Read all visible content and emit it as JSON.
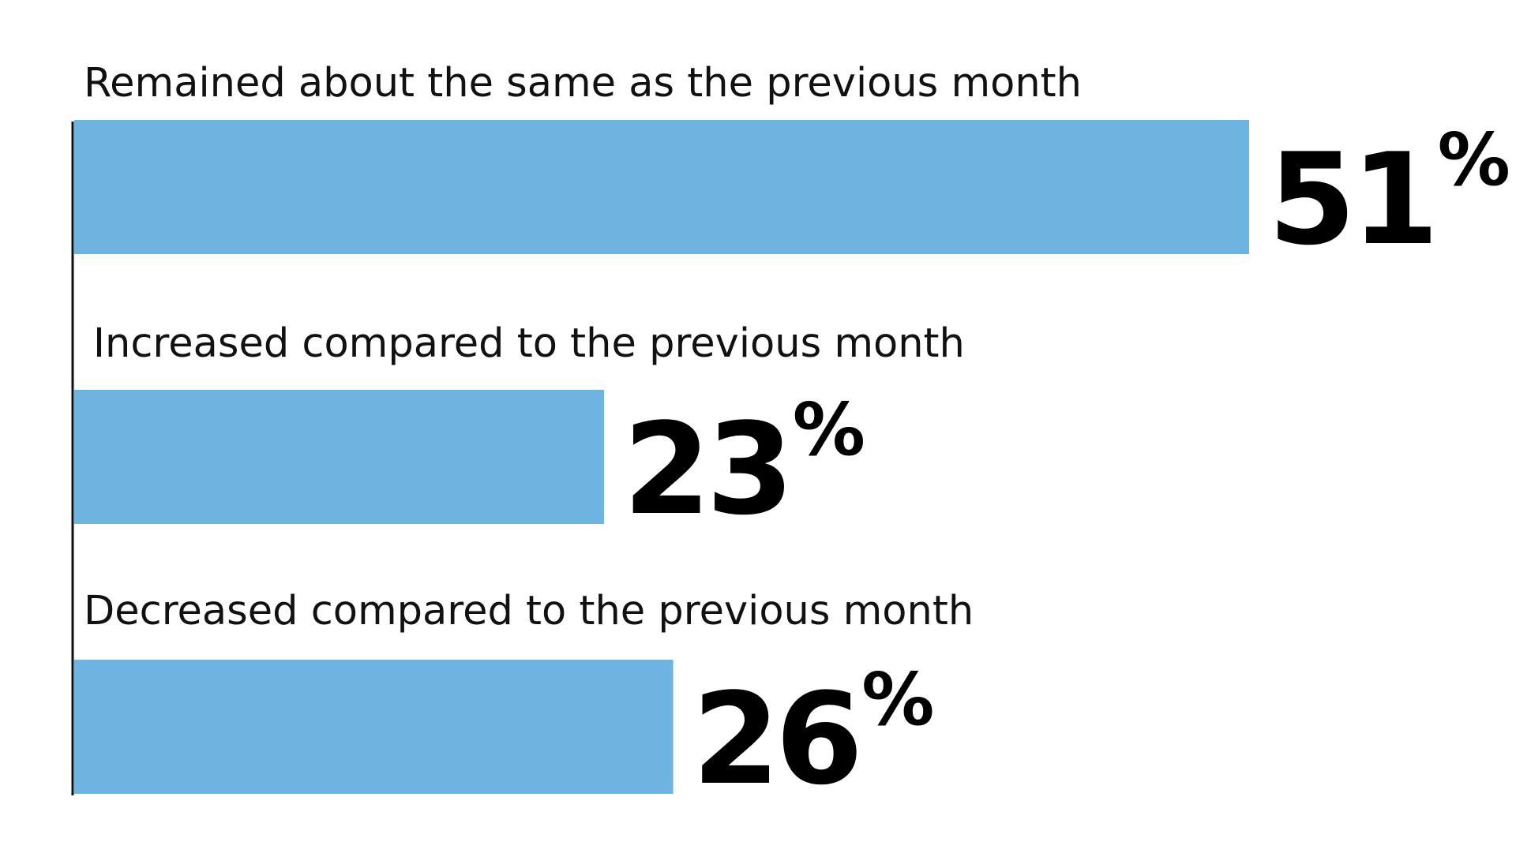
{
  "chart_data": {
    "type": "bar",
    "orientation": "horizontal",
    "categories": [
      "Remained about the same as the previous month",
      "Increased compared to the previous month",
      "Decreased compared to the previous month"
    ],
    "values": [
      51,
      23,
      26
    ],
    "value_labels": [
      "51",
      "23",
      "26"
    ],
    "value_suffix": "%",
    "xlim": [
      0,
      60
    ],
    "grid": false,
    "title": "",
    "xlabel": "",
    "ylabel": "",
    "bar_color": "#6EB4E1",
    "axis_color": "#111111",
    "text_color": "#000000"
  }
}
